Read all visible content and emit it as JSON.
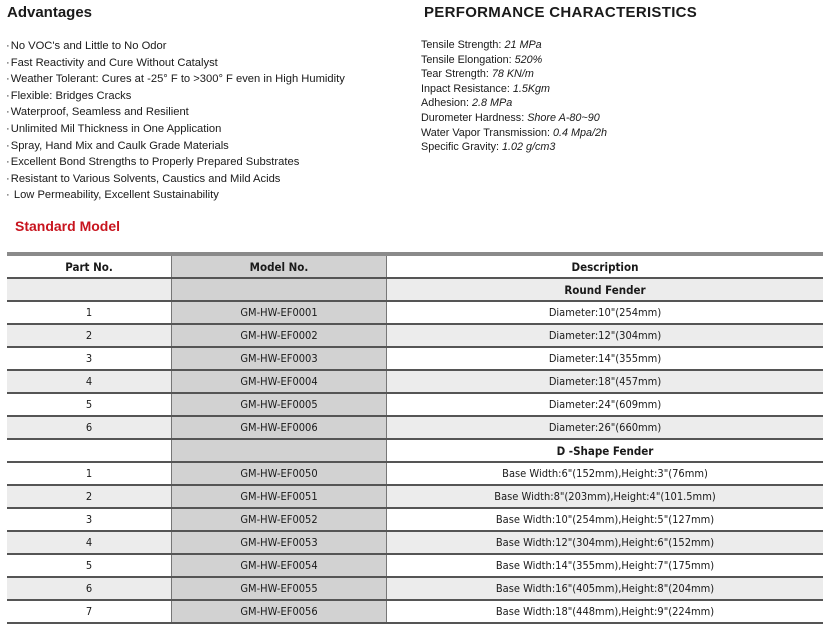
{
  "advantages": {
    "title": "Advantages",
    "items": [
      "No VOC's and Little to No Odor",
      "Fast Reactivity and Cure Without Catalyst",
      "Weather Tolerant: Cures at -25°  F to >300°  F even in High Humidity",
      "Flexible: Bridges Cracks",
      "Waterproof, Seamless and Resilient",
      "Unlimited Mil Thickness in One Application",
      "Spray, Hand Mix and Caulk Grade Materials",
      "Excellent Bond Strengths to Properly Prepared Substrates",
      "Resistant to Various Solvents, Caustics and Mild Acids",
      " Low Permeability, Excellent Sustainability"
    ]
  },
  "performance": {
    "title": "PERFORMANCE CHARACTERISTICS",
    "items": [
      {
        "label": "Tensile Strength: ",
        "value": "21 MPa"
      },
      {
        "label": "Tensile Elongation: ",
        "value": "520%"
      },
      {
        "label": "Tear Strength: ",
        "value": "78 KN/m"
      },
      {
        "label": "Inpact Resistance: ",
        "value": "1.5Kgm"
      },
      {
        "label": "Adhesion: ",
        "value": "2.8 MPa"
      },
      {
        "label": "Durometer Hardness: ",
        "value": "Shore A-80~90"
      },
      {
        "label": "Water Vapor Transmission: ",
        "value": "0.4 Mpa/2h"
      },
      {
        "label": "Specific Gravity: ",
        "value": "1.02 g/cm3"
      }
    ]
  },
  "standard_model": {
    "title": "Standard Model",
    "title_color": "#c8141e",
    "columns": [
      "Part No.",
      "Model No.",
      "Description"
    ],
    "sections": [
      {
        "name": "Round Fender",
        "rows": [
          [
            "1",
            "GM-HW-EF0001",
            "Diameter:10\"(254mm)"
          ],
          [
            "2",
            "GM-HW-EF0002",
            "Diameter:12\"(304mm)"
          ],
          [
            "3",
            "GM-HW-EF0003",
            "Diameter:14\"(355mm)"
          ],
          [
            "4",
            "GM-HW-EF0004",
            "Diameter:18\"(457mm)"
          ],
          [
            "5",
            "GM-HW-EF0005",
            "Diameter:24\"(609mm)"
          ],
          [
            "6",
            "GM-HW-EF0006",
            "Diameter:26\"(660mm)"
          ]
        ]
      },
      {
        "name": "D -Shape Fender",
        "rows": [
          [
            "1",
            "GM-HW-EF0050",
            "Base Width:6\"(152mm),Height:3\"(76mm)"
          ],
          [
            "2",
            "GM-HW-EF0051",
            "Base Width:8\"(203mm),Height:4\"(101.5mm)"
          ],
          [
            "3",
            "GM-HW-EF0052",
            "Base Width:10\"(254mm),Height:5\"(127mm)"
          ],
          [
            "4",
            "GM-HW-EF0053",
            "Base Width:12\"(304mm),Height:6\"(152mm)"
          ],
          [
            "5",
            "GM-HW-EF0054",
            "Base Width:14\"(355mm),Height:7\"(175mm)"
          ],
          [
            "6",
            "GM-HW-EF0055",
            "Base Width:16\"(405mm),Height:8\"(204mm)"
          ],
          [
            "7",
            "GM-HW-EF0056",
            "Base Width:18\"(448mm),Height:9\"(224mm)"
          ]
        ]
      }
    ]
  }
}
